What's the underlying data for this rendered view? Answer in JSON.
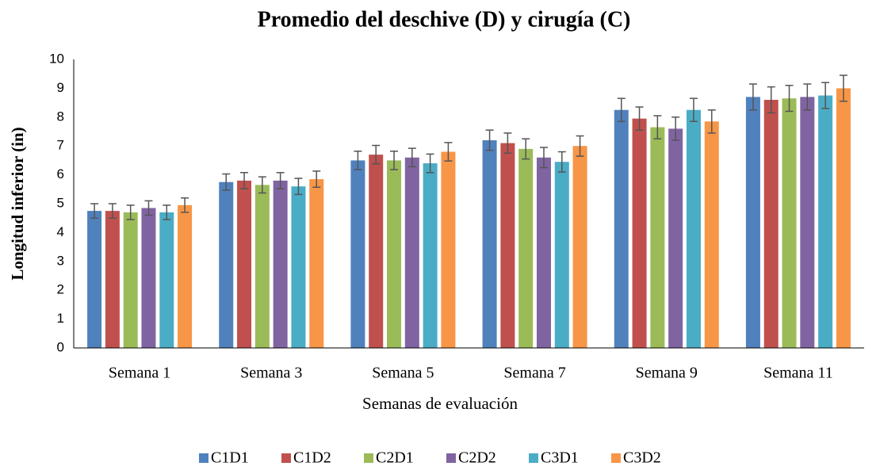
{
  "chart_data": {
    "type": "bar",
    "title": "Promedio del deschive (D) y cirugía (C)",
    "x_label": "Semanas de evaluación",
    "y_label": "Longitud inferior (in)",
    "categories": [
      "Semana 1",
      "Semana 3",
      "Semana 5",
      "Semana 7",
      "Semana 9",
      "Semana 11"
    ],
    "series": [
      {
        "name": "C1D1",
        "color": "#4f81bd",
        "values": [
          4.75,
          5.75,
          6.5,
          7.2,
          8.25,
          8.7
        ],
        "errors": [
          0.25,
          0.28,
          0.32,
          0.35,
          0.4,
          0.45
        ]
      },
      {
        "name": "C1D2",
        "color": "#c0504d",
        "values": [
          4.75,
          5.8,
          6.7,
          7.1,
          7.95,
          8.6
        ],
        "errors": [
          0.25,
          0.28,
          0.32,
          0.35,
          0.4,
          0.45
        ]
      },
      {
        "name": "C2D1",
        "color": "#9bbb59",
        "values": [
          4.7,
          5.65,
          6.5,
          6.9,
          7.65,
          8.65
        ],
        "errors": [
          0.25,
          0.28,
          0.32,
          0.35,
          0.4,
          0.45
        ]
      },
      {
        "name": "C2D2",
        "color": "#8064a2",
        "values": [
          4.85,
          5.8,
          6.6,
          6.6,
          7.6,
          8.7
        ],
        "errors": [
          0.25,
          0.28,
          0.32,
          0.35,
          0.4,
          0.45
        ]
      },
      {
        "name": "C3D1",
        "color": "#4bacc6",
        "values": [
          4.7,
          5.6,
          6.4,
          6.45,
          8.25,
          8.75
        ],
        "errors": [
          0.25,
          0.28,
          0.32,
          0.35,
          0.4,
          0.45
        ]
      },
      {
        "name": "C3D2",
        "color": "#f79646",
        "values": [
          4.95,
          5.85,
          6.8,
          7.0,
          7.85,
          9.0
        ],
        "errors": [
          0.25,
          0.28,
          0.32,
          0.35,
          0.4,
          0.45
        ]
      }
    ],
    "ylim": [
      0,
      10
    ],
    "yticks": [
      0,
      1,
      2,
      3,
      4,
      5,
      6,
      7,
      8,
      9,
      10
    ],
    "grid": false,
    "legend": "bottom"
  }
}
